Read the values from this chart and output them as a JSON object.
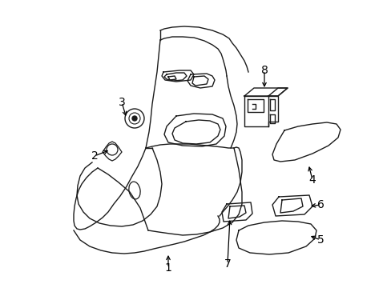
{
  "background_color": "#ffffff",
  "line_color": "#1a1a1a",
  "label_color": "#000000",
  "label_fontsize": 10,
  "arrow_color": "#000000",
  "figsize": [
    4.89,
    3.6
  ],
  "dpi": 100
}
